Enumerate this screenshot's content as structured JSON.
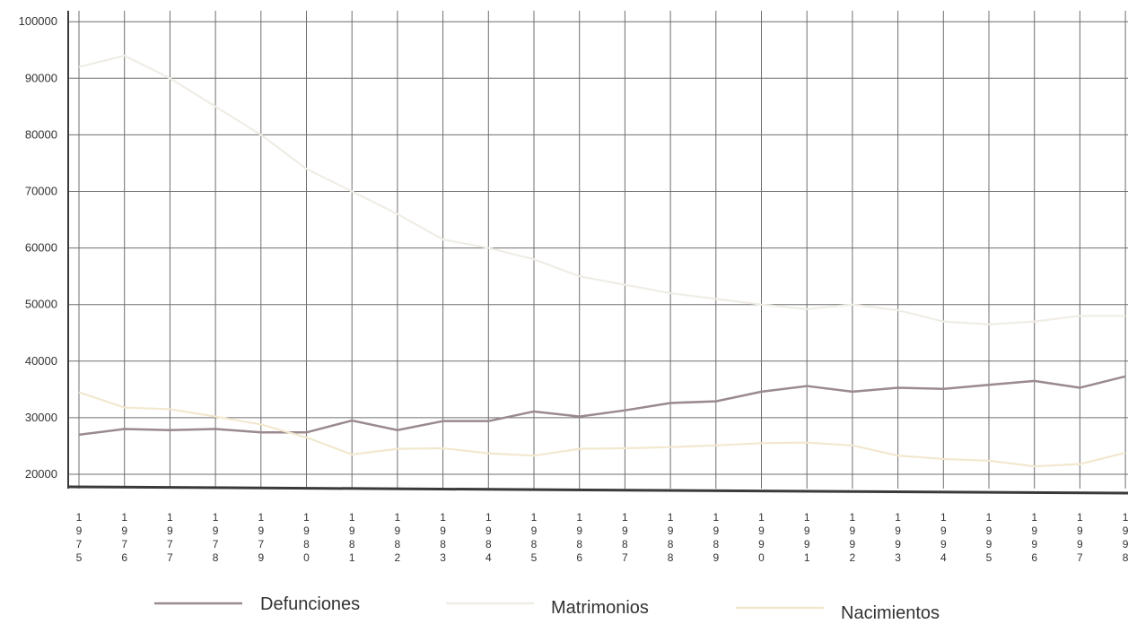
{
  "chart_data": {
    "type": "line",
    "categories": [
      "1975",
      "1976",
      "1977",
      "1978",
      "1979",
      "1980",
      "1981",
      "1982",
      "1983",
      "1984",
      "1985",
      "1986",
      "1987",
      "1988",
      "1989",
      "1990",
      "1991",
      "1992",
      "1993",
      "1994",
      "1995",
      "1996",
      "1997",
      "1998"
    ],
    "ylim": [
      18000,
      100000
    ],
    "yticks": [
      20000,
      30000,
      40000,
      50000,
      60000,
      70000,
      80000,
      90000,
      100000
    ],
    "grid": true,
    "legend_position": "bottom",
    "series": [
      {
        "name": "Defunciones",
        "color": "#9a8a8e",
        "values": [
          27000,
          28000,
          27800,
          28000,
          27400,
          27400,
          29500,
          27800,
          29400,
          29400,
          31100,
          30200,
          31300,
          32600,
          32900,
          34600,
          35600,
          34600,
          35300,
          35100,
          35800,
          36500,
          35300,
          37300
        ]
      },
      {
        "name": "Matrimonios",
        "color": "#f0ede6",
        "values": [
          92000,
          94000,
          90000,
          85000,
          80000,
          74000,
          70000,
          66000,
          61500,
          60000,
          58000,
          55000,
          53500,
          52000,
          51000,
          50000,
          49200,
          50000,
          49000,
          47000,
          46500,
          47000,
          48000,
          48000
        ]
      },
      {
        "name": "Nacimientos",
        "color": "#f2e8cf",
        "values": [
          34500,
          31800,
          31500,
          30200,
          28800,
          26500,
          23500,
          24500,
          24600,
          23700,
          23300,
          24500,
          24600,
          24800,
          25100,
          25500,
          25600,
          25100,
          23300,
          22700,
          22400,
          21400,
          21800,
          23800
        ]
      }
    ]
  }
}
